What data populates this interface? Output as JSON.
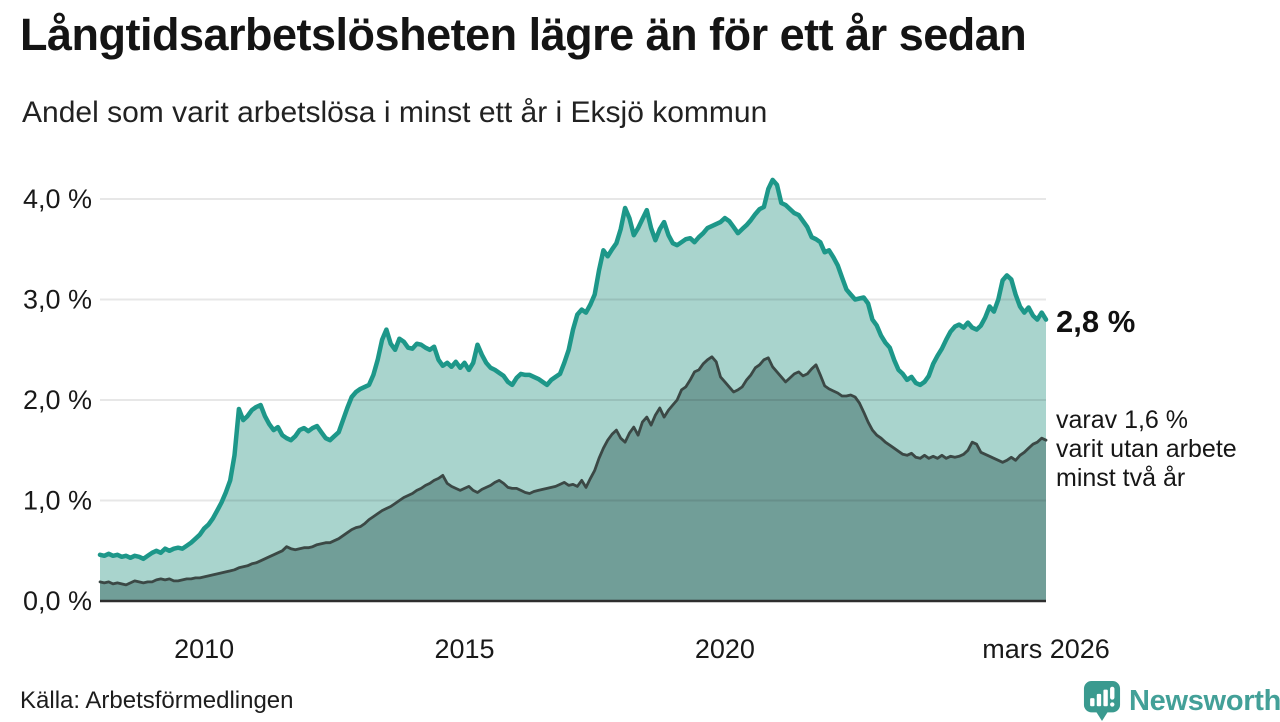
{
  "header": {
    "title": "Långtidsarbetslösheten lägre än för ett år sedan",
    "subtitle": "Andel som varit arbetslösa i minst ett år i Eksjö kommun"
  },
  "chart_data": {
    "type": "area",
    "title": "Långtidsarbetslösheten lägre än för ett år sedan",
    "xlabel": "",
    "ylabel": "",
    "unit": "%",
    "grid": true,
    "x_axis": {
      "start_year": 2008,
      "frequency": "monthly",
      "ticks": [
        {
          "label": "2010",
          "x": 2010
        },
        {
          "label": "2015",
          "x": 2015
        },
        {
          "label": "2020",
          "x": 2020
        },
        {
          "label": "mars 2026",
          "x": 2026.1667
        }
      ]
    },
    "y_axis": {
      "range": [
        0,
        4.3
      ],
      "ticks": [
        {
          "label": "0,0 %",
          "value": 0
        },
        {
          "label": "1,0 %",
          "value": 1
        },
        {
          "label": "2,0 %",
          "value": 2
        },
        {
          "label": "3,0 %",
          "value": 3
        },
        {
          "label": "4,0 %",
          "value": 4
        }
      ]
    },
    "series": [
      {
        "name": "Andel som varit arbetslösa i minst ett år",
        "line_color": "#1d9789",
        "fill_color": "#a9d4cd",
        "line_width": 4.5,
        "latest_label": "2,8 %",
        "values": [
          0.46,
          0.45,
          0.47,
          0.45,
          0.46,
          0.44,
          0.45,
          0.43,
          0.45,
          0.44,
          0.42,
          0.45,
          0.48,
          0.5,
          0.48,
          0.52,
          0.5,
          0.52,
          0.53,
          0.52,
          0.55,
          0.58,
          0.62,
          0.66,
          0.72,
          0.76,
          0.82,
          0.9,
          0.98,
          1.08,
          1.2,
          1.45,
          1.91,
          1.8,
          1.84,
          1.9,
          1.93,
          1.95,
          1.84,
          1.76,
          1.7,
          1.73,
          1.65,
          1.62,
          1.6,
          1.64,
          1.7,
          1.72,
          1.69,
          1.72,
          1.74,
          1.68,
          1.62,
          1.6,
          1.64,
          1.68,
          1.8,
          1.92,
          2.03,
          2.08,
          2.11,
          2.13,
          2.15,
          2.25,
          2.4,
          2.6,
          2.7,
          2.56,
          2.5,
          2.61,
          2.58,
          2.52,
          2.51,
          2.56,
          2.55,
          2.52,
          2.5,
          2.53,
          2.4,
          2.34,
          2.37,
          2.33,
          2.38,
          2.32,
          2.37,
          2.3,
          2.37,
          2.55,
          2.45,
          2.37,
          2.32,
          2.3,
          2.27,
          2.24,
          2.18,
          2.15,
          2.22,
          2.26,
          2.25,
          2.25,
          2.23,
          2.21,
          2.18,
          2.15,
          2.2,
          2.23,
          2.26,
          2.37,
          2.5,
          2.7,
          2.85,
          2.9,
          2.87,
          2.95,
          3.05,
          3.29,
          3.49,
          3.43,
          3.5,
          3.56,
          3.7,
          3.91,
          3.81,
          3.64,
          3.71,
          3.8,
          3.89,
          3.71,
          3.59,
          3.7,
          3.77,
          3.64,
          3.56,
          3.54,
          3.57,
          3.6,
          3.61,
          3.57,
          3.62,
          3.66,
          3.71,
          3.73,
          3.75,
          3.77,
          3.81,
          3.78,
          3.72,
          3.66,
          3.7,
          3.74,
          3.79,
          3.85,
          3.9,
          3.92,
          4.1,
          4.19,
          4.14,
          3.96,
          3.94,
          3.9,
          3.86,
          3.84,
          3.78,
          3.72,
          3.62,
          3.6,
          3.57,
          3.47,
          3.49,
          3.42,
          3.34,
          3.22,
          3.1,
          3.05,
          3.0,
          3.01,
          3.02,
          2.96,
          2.8,
          2.74,
          2.64,
          2.57,
          2.52,
          2.4,
          2.3,
          2.26,
          2.2,
          2.23,
          2.17,
          2.15,
          2.18,
          2.24,
          2.36,
          2.44,
          2.51,
          2.6,
          2.68,
          2.73,
          2.75,
          2.72,
          2.77,
          2.72,
          2.7,
          2.74,
          2.82,
          2.93,
          2.88,
          3.0,
          3.19,
          3.24,
          3.2,
          3.05,
          2.93,
          2.87,
          2.92,
          2.84,
          2.8,
          2.87,
          2.8
        ]
      },
      {
        "name": "varav utan arbete minst två år",
        "line_color": "#3b4845",
        "fill_color": "#719e98",
        "line_width": 2.8,
        "latest_label": "1,6 %",
        "values": [
          0.19,
          0.18,
          0.19,
          0.17,
          0.18,
          0.17,
          0.16,
          0.18,
          0.2,
          0.19,
          0.18,
          0.19,
          0.19,
          0.21,
          0.22,
          0.21,
          0.22,
          0.2,
          0.2,
          0.21,
          0.22,
          0.22,
          0.23,
          0.23,
          0.24,
          0.25,
          0.26,
          0.27,
          0.28,
          0.29,
          0.3,
          0.31,
          0.33,
          0.34,
          0.35,
          0.37,
          0.38,
          0.4,
          0.42,
          0.44,
          0.46,
          0.48,
          0.5,
          0.54,
          0.52,
          0.51,
          0.52,
          0.53,
          0.53,
          0.54,
          0.56,
          0.57,
          0.58,
          0.58,
          0.6,
          0.62,
          0.65,
          0.68,
          0.71,
          0.73,
          0.74,
          0.77,
          0.81,
          0.84,
          0.87,
          0.9,
          0.92,
          0.94,
          0.97,
          1.0,
          1.03,
          1.05,
          1.07,
          1.1,
          1.12,
          1.15,
          1.17,
          1.2,
          1.22,
          1.25,
          1.17,
          1.14,
          1.12,
          1.1,
          1.12,
          1.14,
          1.1,
          1.08,
          1.11,
          1.13,
          1.15,
          1.18,
          1.2,
          1.17,
          1.13,
          1.12,
          1.12,
          1.1,
          1.08,
          1.07,
          1.09,
          1.1,
          1.11,
          1.12,
          1.13,
          1.14,
          1.16,
          1.18,
          1.15,
          1.16,
          1.14,
          1.2,
          1.13,
          1.22,
          1.3,
          1.42,
          1.52,
          1.6,
          1.66,
          1.7,
          1.62,
          1.58,
          1.67,
          1.73,
          1.65,
          1.78,
          1.83,
          1.75,
          1.85,
          1.92,
          1.83,
          1.9,
          1.95,
          2.0,
          2.1,
          2.13,
          2.2,
          2.28,
          2.3,
          2.36,
          2.4,
          2.43,
          2.38,
          2.23,
          2.18,
          2.13,
          2.08,
          2.1,
          2.13,
          2.2,
          2.25,
          2.32,
          2.35,
          2.4,
          2.42,
          2.33,
          2.28,
          2.23,
          2.18,
          2.22,
          2.26,
          2.28,
          2.24,
          2.26,
          2.31,
          2.35,
          2.25,
          2.14,
          2.11,
          2.09,
          2.07,
          2.04,
          2.04,
          2.05,
          2.03,
          1.97,
          1.88,
          1.78,
          1.7,
          1.65,
          1.62,
          1.58,
          1.55,
          1.52,
          1.49,
          1.46,
          1.45,
          1.47,
          1.43,
          1.42,
          1.45,
          1.42,
          1.44,
          1.42,
          1.45,
          1.42,
          1.44,
          1.43,
          1.44,
          1.46,
          1.5,
          1.58,
          1.56,
          1.48,
          1.46,
          1.44,
          1.42,
          1.4,
          1.38,
          1.4,
          1.43,
          1.4,
          1.45,
          1.48,
          1.52,
          1.56,
          1.58,
          1.62,
          1.6
        ]
      }
    ],
    "legend_position": "none"
  },
  "annotations": {
    "latest_total": "2,8 %",
    "latest_two_year_lines": [
      "varav 1,6 %",
      "varit utan arbete",
      "minst två år"
    ]
  },
  "footer": {
    "source": "Källa: Arbetsförmedlingen",
    "brand": "Newsworthy"
  },
  "colors": {
    "accent_line": "#1d9789",
    "fill_light": "#a9d4cd",
    "fill_dark": "#719e98",
    "line_dark": "#3b4845",
    "gridline": "#e6e6e8",
    "baseline": "#2e2e2e",
    "brand_teal": "#3a9a8f",
    "text": "#141414"
  }
}
